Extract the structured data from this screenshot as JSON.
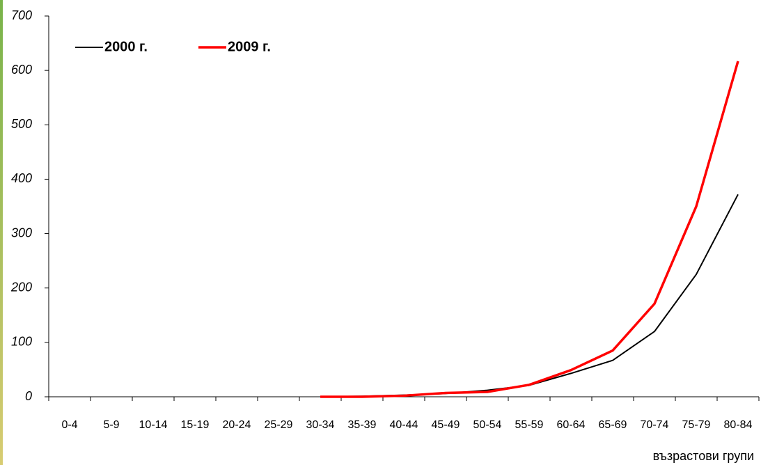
{
  "chart_data": {
    "type": "line",
    "x_label": "възрастови групи",
    "categories": [
      "0-4",
      "5-9",
      "10-14",
      "15-19",
      "20-24",
      "25-29",
      "30-34",
      "35-39",
      "40-44",
      "45-49",
      "50-54",
      "55-59",
      "60-64",
      "65-69",
      "70-74",
      "75-79",
      "80-84"
    ],
    "series": [
      {
        "name": "2000 г.",
        "color": "#000000",
        "values": [
          null,
          null,
          null,
          null,
          null,
          null,
          0,
          1,
          3,
          6,
          12,
          21,
          43,
          67,
          120,
          225,
          372
        ]
      },
      {
        "name": "2009 г.",
        "color": "#ff0000",
        "values": [
          null,
          null,
          null,
          null,
          null,
          null,
          0,
          0,
          2,
          7,
          9,
          22,
          49,
          85,
          171,
          350,
          617
        ]
      }
    ],
    "ylim": [
      0,
      700
    ],
    "yticks": [
      0,
      100,
      200,
      300,
      400,
      500,
      600,
      700
    ],
    "legend": "top-left"
  }
}
